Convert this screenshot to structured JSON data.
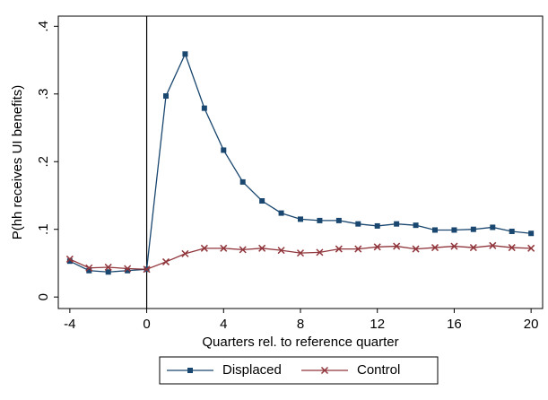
{
  "chart_data": {
    "type": "line",
    "x_label": "Quarters rel. to reference quarter",
    "y_label": "P(hh receives UI benefits)",
    "x": [
      -4,
      -3,
      -2,
      -1,
      0,
      1,
      2,
      3,
      4,
      5,
      6,
      7,
      8,
      9,
      10,
      11,
      12,
      13,
      14,
      15,
      16,
      17,
      18,
      19,
      20
    ],
    "series": [
      {
        "name": "Displaced",
        "color": "#1a476f",
        "marker": "square",
        "values": [
          0.053,
          0.039,
          0.037,
          0.039,
          0.041,
          0.297,
          0.359,
          0.279,
          0.217,
          0.17,
          0.142,
          0.124,
          0.115,
          0.113,
          0.113,
          0.108,
          0.105,
          0.108,
          0.106,
          0.099,
          0.099,
          0.1,
          0.103,
          0.097,
          0.094
        ]
      },
      {
        "name": "Control",
        "color": "#90353b",
        "marker": "x",
        "values": [
          0.056,
          0.043,
          0.044,
          0.042,
          0.041,
          0.052,
          0.064,
          0.072,
          0.072,
          0.07,
          0.072,
          0.069,
          0.065,
          0.066,
          0.071,
          0.071,
          0.074,
          0.075,
          0.071,
          0.073,
          0.075,
          0.073,
          0.076,
          0.073,
          0.072
        ]
      }
    ],
    "xlim": [
      -4.6,
      20.6
    ],
    "xticks": [
      -4,
      0,
      4,
      8,
      12,
      16,
      20
    ],
    "ylim": [
      -0.017,
      0.415
    ],
    "yticks": [
      0,
      {
        "value": 0.1,
        "label": ".1"
      },
      {
        "value": 0.2,
        "label": ".2"
      },
      {
        "value": 0.3,
        "label": ".3"
      },
      {
        "value": 0.4,
        "label": ".4"
      }
    ],
    "xline": 0,
    "grid": false,
    "legend": "bottom"
  }
}
